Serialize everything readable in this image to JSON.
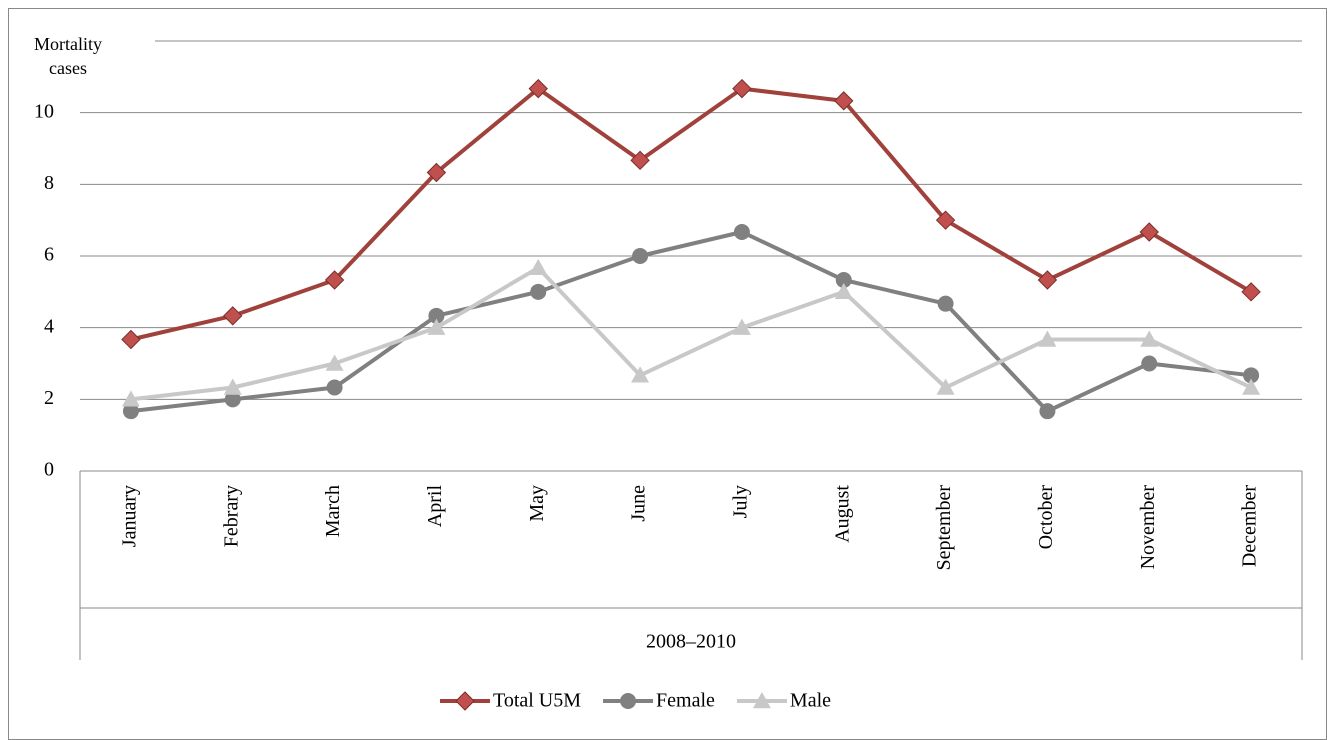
{
  "chart_data": {
    "type": "line",
    "y_label": "Mortality cases",
    "x_group_label": "2008–2010",
    "categories": [
      "January",
      "Febrary",
      "March",
      "April",
      "May",
      "June",
      "July",
      "August",
      "September",
      "October",
      "November",
      "December"
    ],
    "series": [
      {
        "name": "Total U5M",
        "color": "#a0413c",
        "marker": "diamond",
        "values": [
          3.67,
          4.33,
          5.33,
          8.33,
          10.67,
          8.67,
          10.67,
          10.33,
          7,
          5.33,
          6.67,
          5
        ]
      },
      {
        "name": "Female",
        "color": "#808080",
        "marker": "circle",
        "values": [
          1.67,
          2,
          2.33,
          4.33,
          5,
          6,
          6.67,
          5.33,
          4.67,
          1.67,
          3,
          2.67
        ]
      },
      {
        "name": "Male",
        "color": "#c8c8c8",
        "marker": "triangle",
        "values": [
          2,
          2.33,
          3,
          4,
          5.67,
          2.67,
          4,
          5,
          2.33,
          3.67,
          3.67,
          2.33
        ]
      }
    ],
    "ylim": [
      0,
      12
    ],
    "yticks": [
      0,
      2,
      4,
      6,
      8,
      10
    ],
    "grid": true,
    "legend": "bottom"
  }
}
